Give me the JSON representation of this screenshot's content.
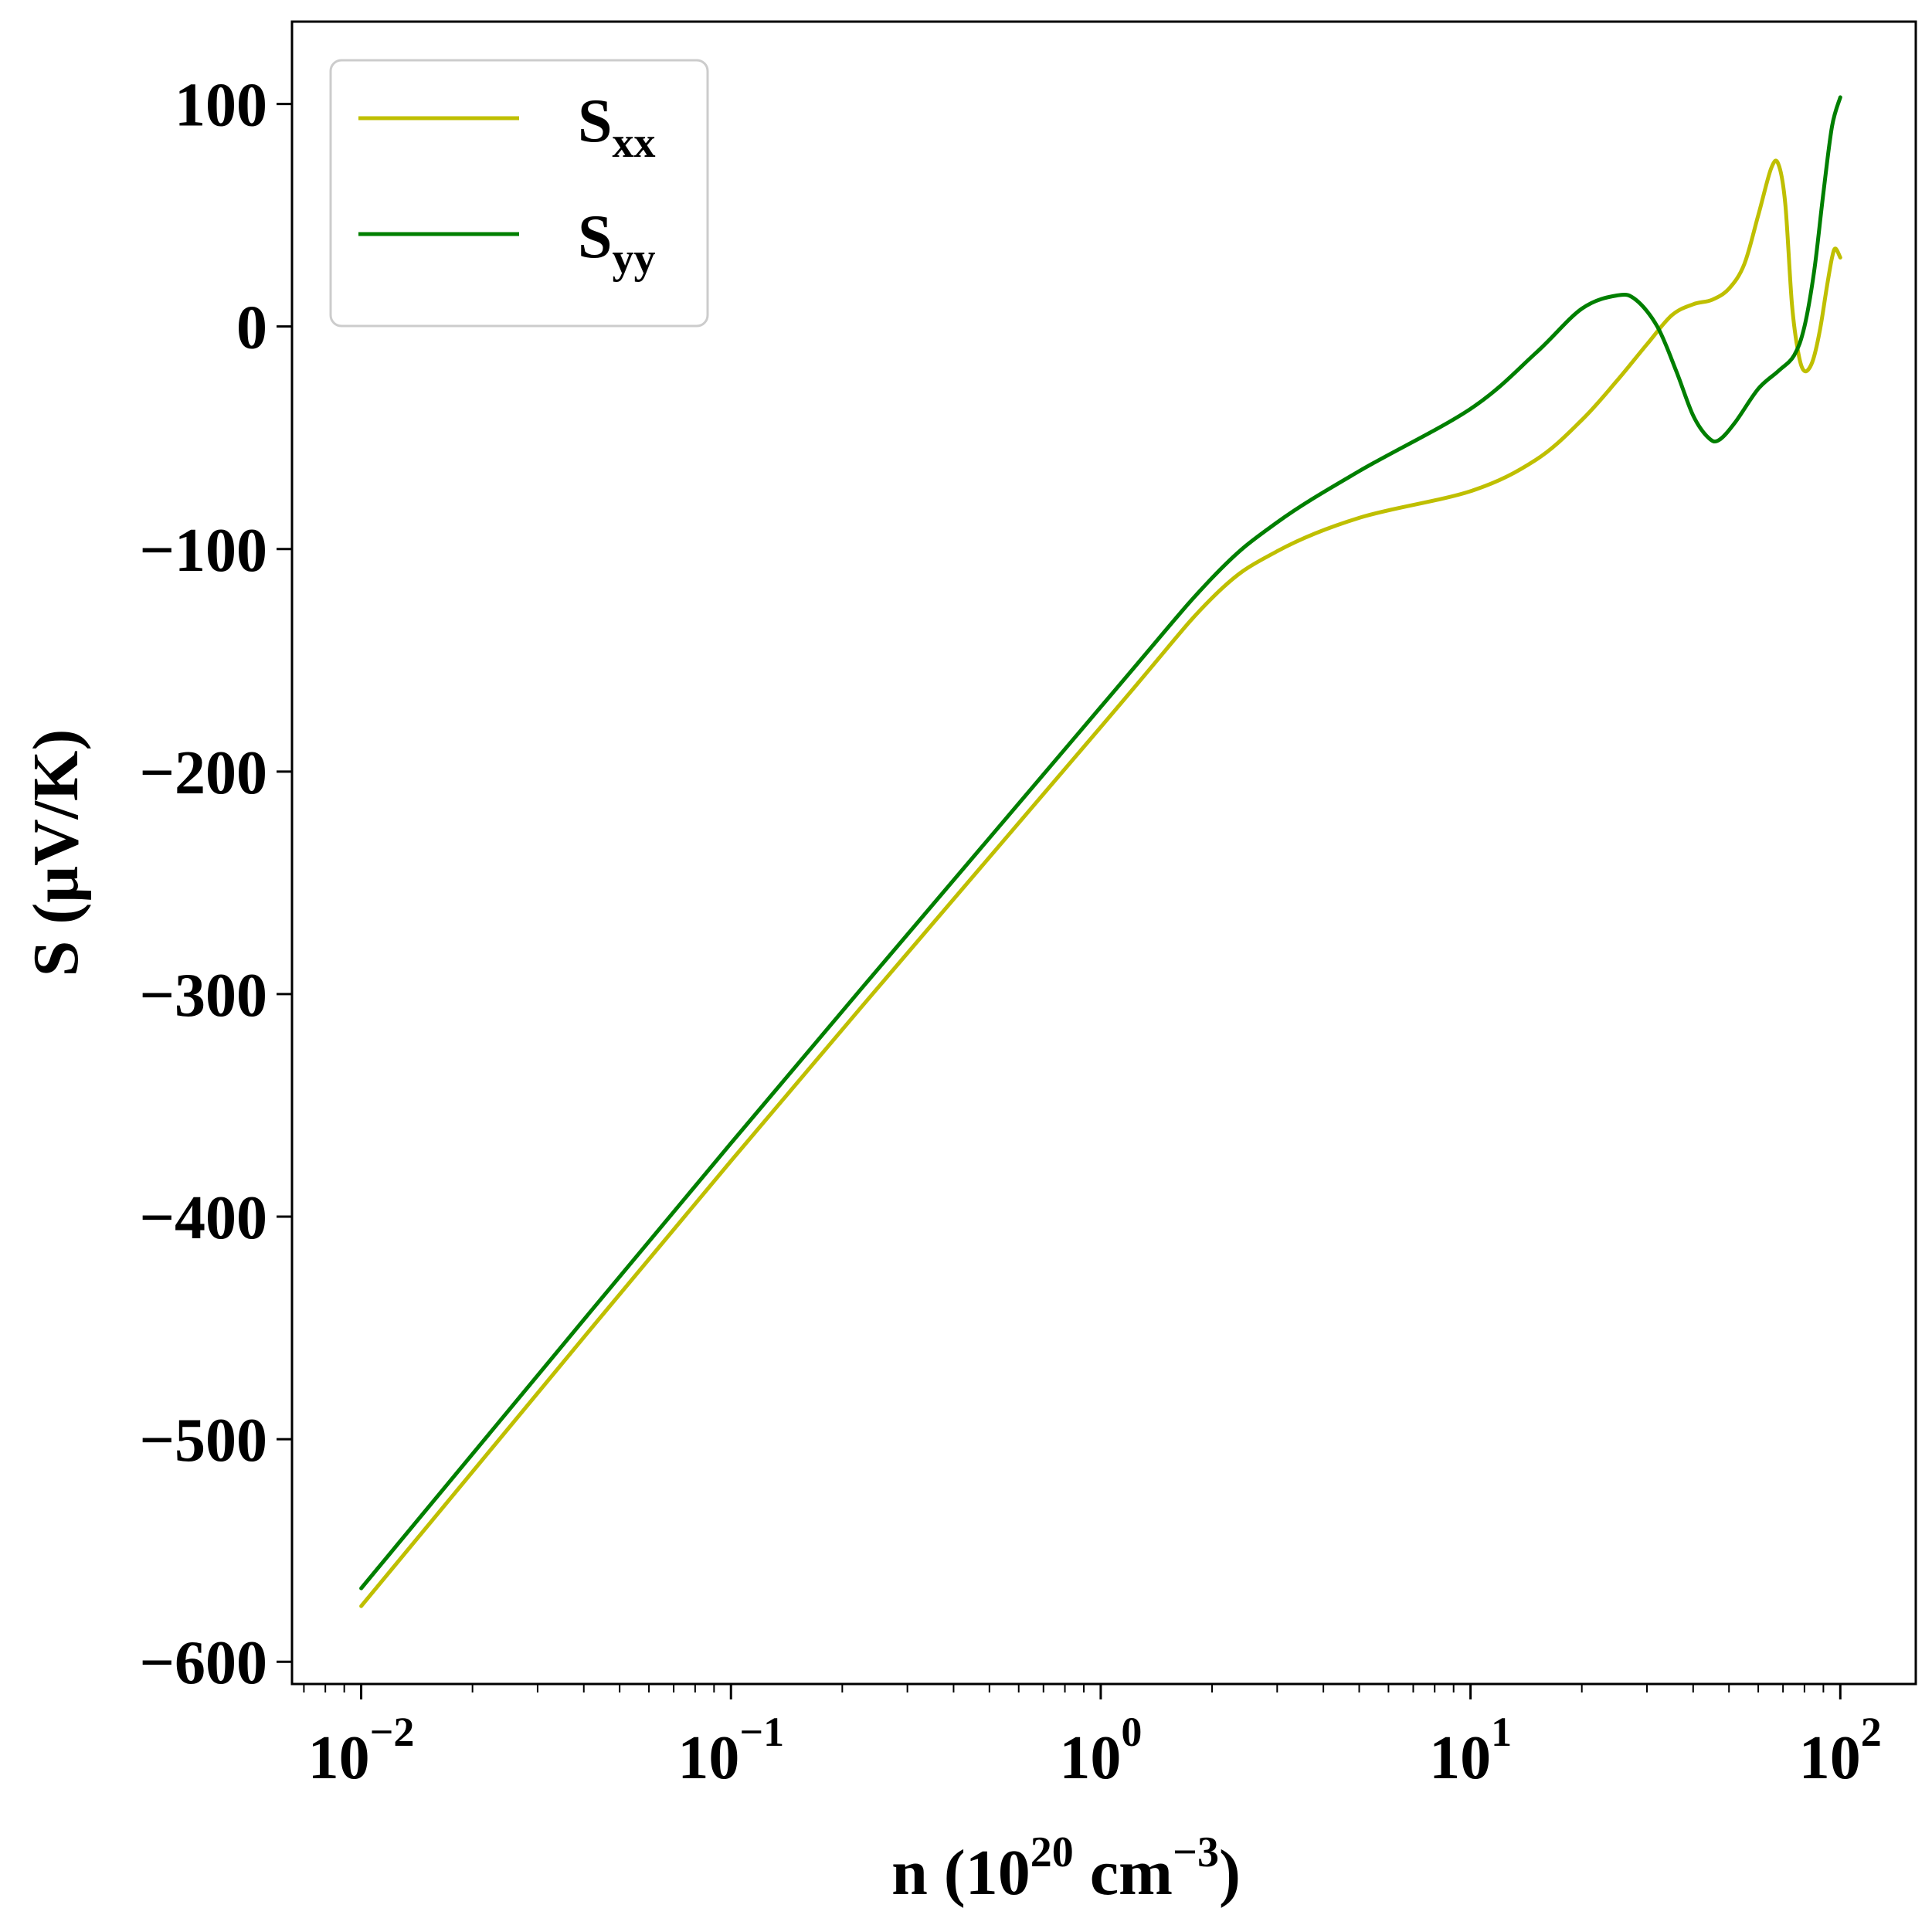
{
  "chart_data": {
    "type": "line",
    "xscale": "log",
    "xlim": [
      0.0065,
      160
    ],
    "ylim": [
      -610,
      137
    ],
    "xticks": [
      0.01,
      0.1,
      1,
      10,
      100
    ],
    "xtick_labels": [
      {
        "base": "10",
        "exp": "−2"
      },
      {
        "base": "10",
        "exp": "−1"
      },
      {
        "base": "10",
        "exp": "0"
      },
      {
        "base": "10",
        "exp": "1"
      },
      {
        "base": "10",
        "exp": "2"
      }
    ],
    "yticks": [
      100,
      0,
      -100,
      -200,
      -300,
      -400,
      -500,
      -600
    ],
    "ytick_labels": [
      "100",
      "0",
      "−100",
      "−200",
      "−300",
      "−400",
      "−500",
      "−600"
    ],
    "xlabel": {
      "pre": "n (10",
      "sup1": "20",
      "mid": " cm",
      "sup2": "−3",
      "post": ")"
    },
    "ylabel": "S (μV/K)",
    "legend_position": "upper-left",
    "grid": false,
    "series": [
      {
        "name": {
          "base": "S",
          "sub": "xx"
        },
        "color": "#bfbf00",
        "points": [
          [
            0.01,
            -575
          ],
          [
            0.1,
            -375
          ],
          [
            1,
            -180
          ],
          [
            2,
            -122
          ],
          [
            3,
            -101
          ],
          [
            5,
            -86
          ],
          [
            10,
            -74
          ],
          [
            15,
            -60
          ],
          [
            20,
            -42
          ],
          [
            25,
            -24
          ],
          [
            30,
            -8
          ],
          [
            35,
            5
          ],
          [
            40,
            10
          ],
          [
            45,
            12
          ],
          [
            50,
            17
          ],
          [
            55,
            28
          ],
          [
            60,
            50
          ],
          [
            65,
            71
          ],
          [
            68,
            73
          ],
          [
            71,
            55
          ],
          [
            74,
            10
          ],
          [
            77,
            -12
          ],
          [
            80,
            -20
          ],
          [
            84,
            -16
          ],
          [
            88,
            -2
          ],
          [
            92,
            18
          ],
          [
            95,
            31
          ],
          [
            97,
            35
          ],
          [
            100,
            31
          ]
        ]
      },
      {
        "name": {
          "base": "S",
          "sub": "yy"
        },
        "color": "#007f00",
        "points": [
          [
            0.01,
            -567
          ],
          [
            0.1,
            -367
          ],
          [
            1,
            -171
          ],
          [
            2,
            -113
          ],
          [
            3,
            -88
          ],
          [
            5,
            -65
          ],
          [
            10,
            -37
          ],
          [
            15,
            -12
          ],
          [
            20,
            8
          ],
          [
            25,
            14
          ],
          [
            28,
            12
          ],
          [
            32,
            0
          ],
          [
            36,
            -20
          ],
          [
            40,
            -40
          ],
          [
            44,
            -50
          ],
          [
            47,
            -51
          ],
          [
            52,
            -43
          ],
          [
            60,
            -28
          ],
          [
            68,
            -20
          ],
          [
            75,
            -13
          ],
          [
            80,
            0
          ],
          [
            85,
            25
          ],
          [
            90,
            60
          ],
          [
            95,
            90
          ],
          [
            100,
            103
          ]
        ]
      }
    ]
  }
}
